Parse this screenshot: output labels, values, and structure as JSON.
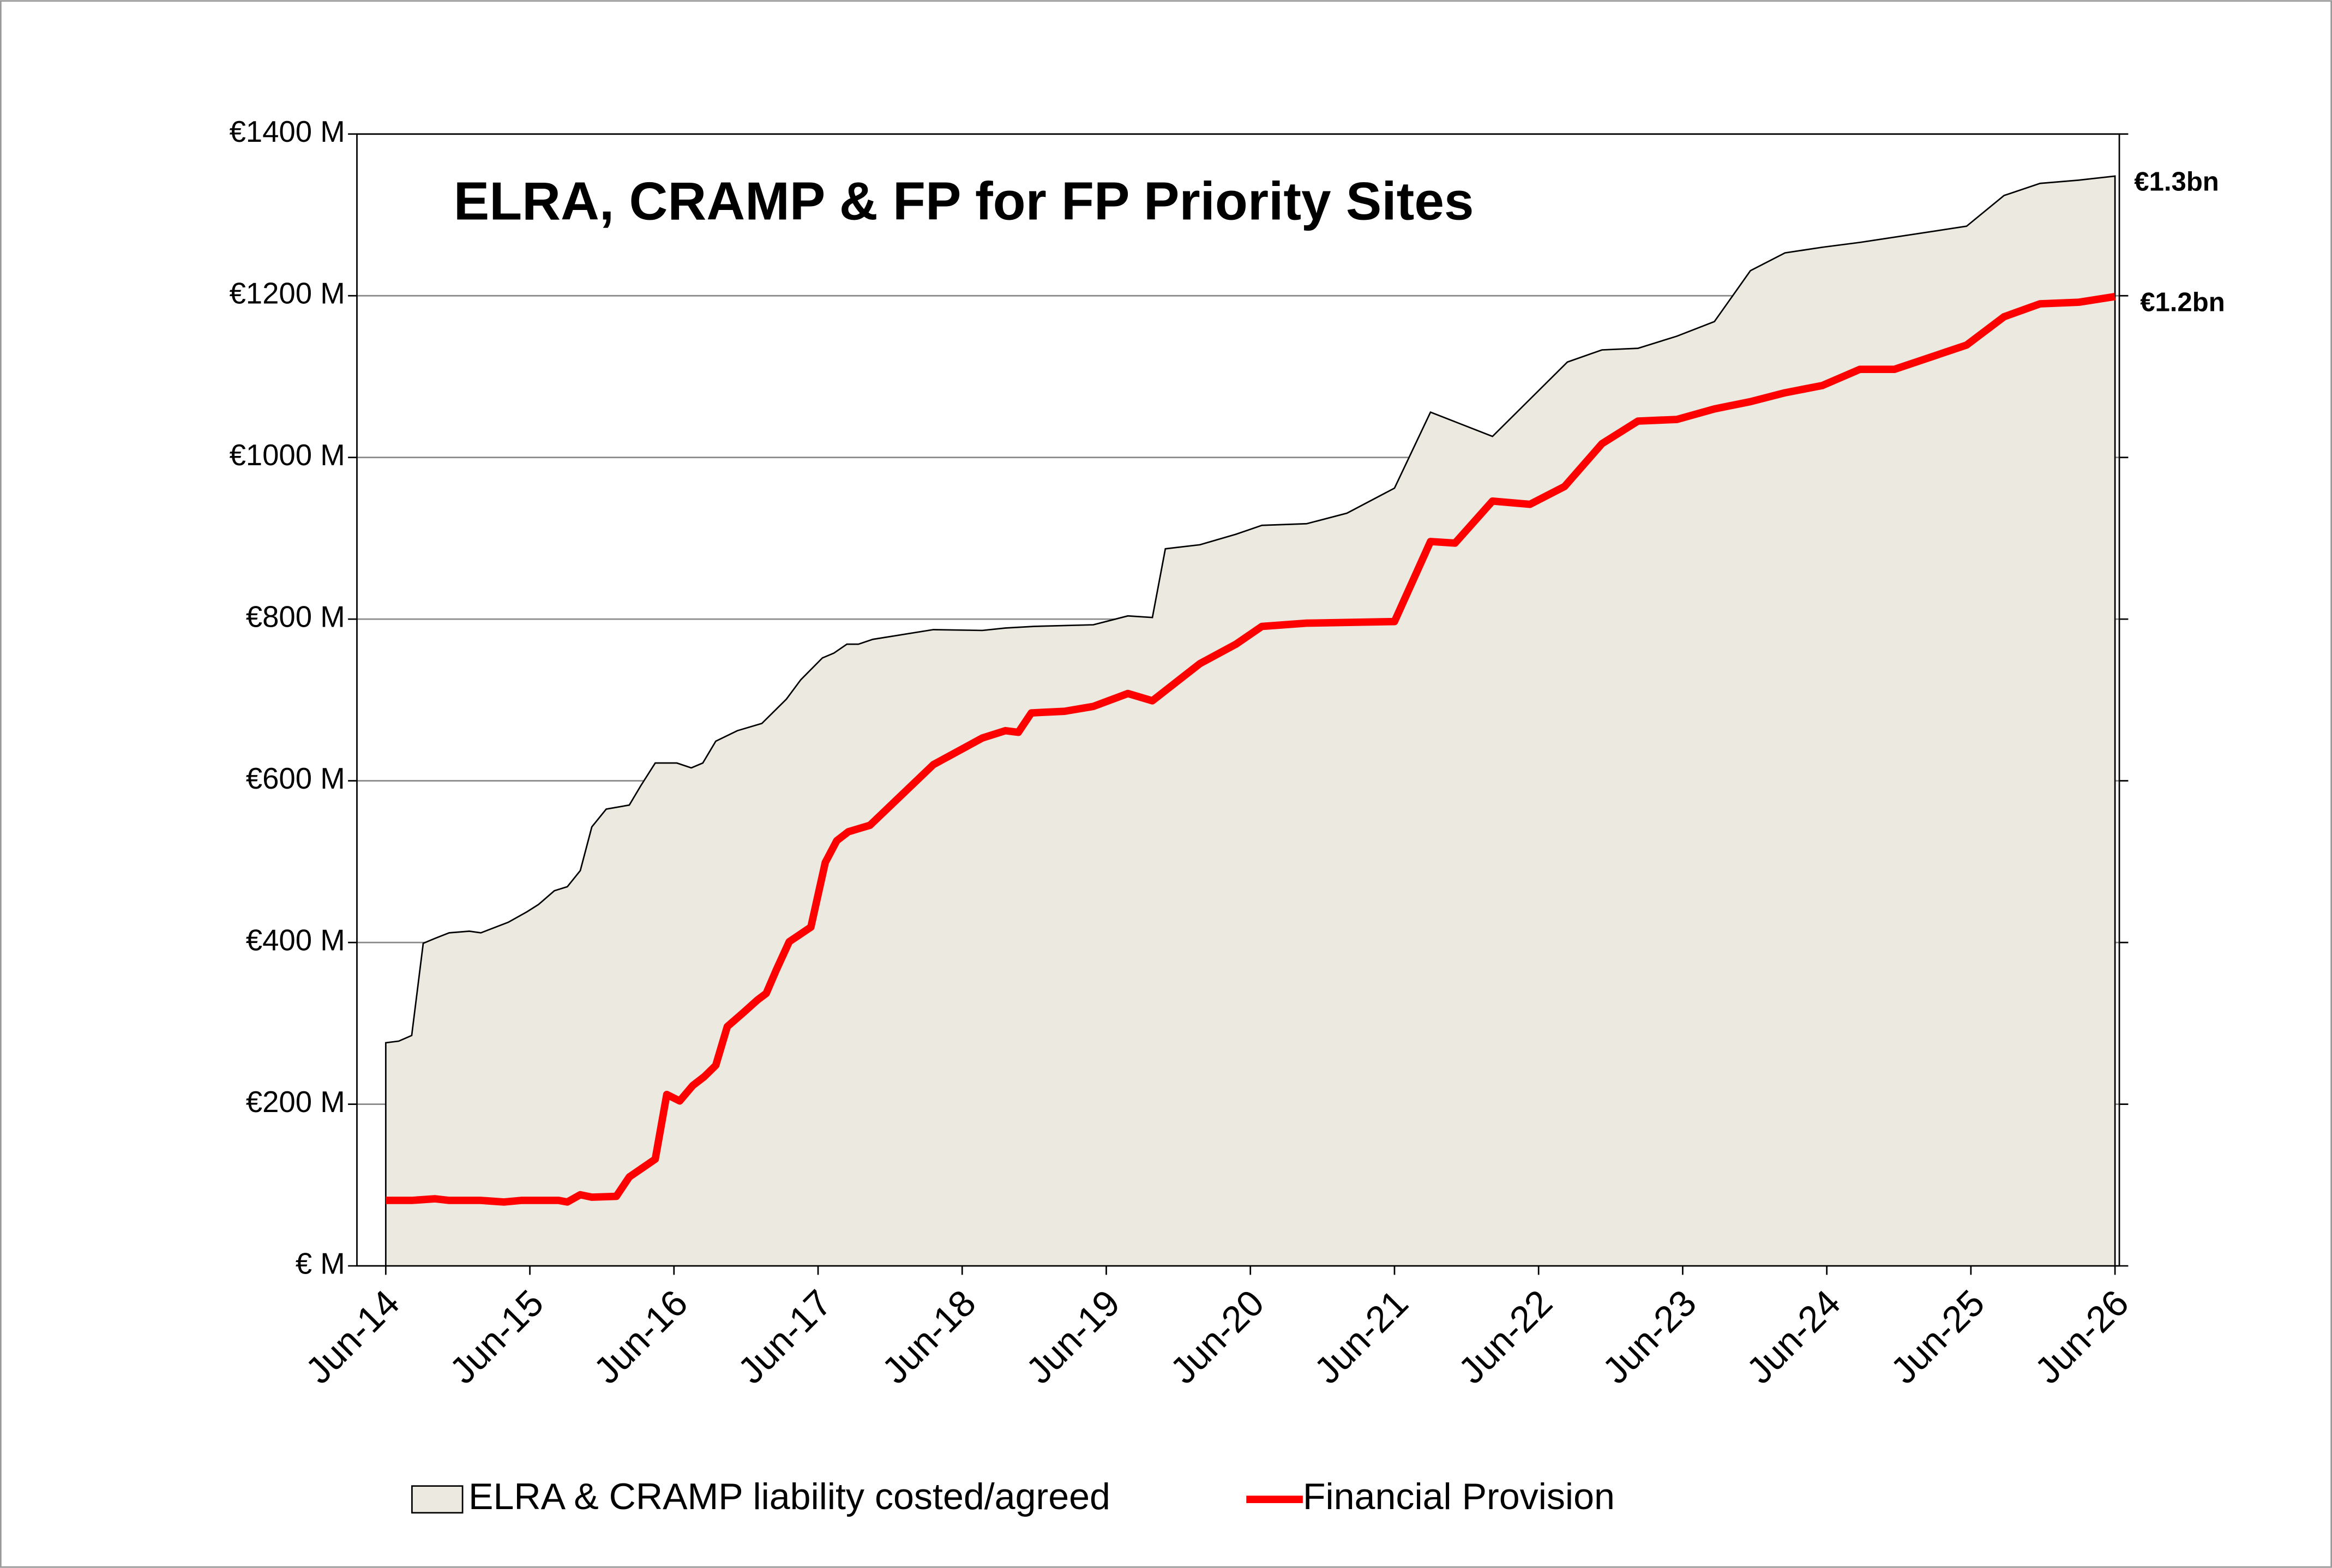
{
  "chart_data": {
    "type": "area-line",
    "title": "ELRA, CRAMP & FP for FP Priority Sites",
    "xlim": [
      2014.3,
      2026.53
    ],
    "xticks": [
      {
        "value": 2014.5,
        "label": "Jun-14"
      },
      {
        "value": 2015.5,
        "label": "Jun-15"
      },
      {
        "value": 2016.5,
        "label": "Jun-16"
      },
      {
        "value": 2017.5,
        "label": "Jun-17"
      },
      {
        "value": 2018.5,
        "label": "Jun-18"
      },
      {
        "value": 2019.5,
        "label": "Jun-19"
      },
      {
        "value": 2020.5,
        "label": "Jun-20"
      },
      {
        "value": 2021.5,
        "label": "Jun-21"
      },
      {
        "value": 2022.5,
        "label": "Jun-22"
      },
      {
        "value": 2023.5,
        "label": "Jun-23"
      },
      {
        "value": 2024.5,
        "label": "Jun-24"
      },
      {
        "value": 2025.5,
        "label": "Jun-25"
      },
      {
        "value": 2026.5,
        "label": "Jun-26"
      }
    ],
    "ylim": [
      0,
      1400
    ],
    "yticks": [
      {
        "value": 0,
        "label": "€ M"
      },
      {
        "value": 200,
        "label": "€200 M"
      },
      {
        "value": 400,
        "label": "€400 M"
      },
      {
        "value": 600,
        "label": "€600 M"
      },
      {
        "value": 800,
        "label": "€800 M"
      },
      {
        "value": 1000,
        "label": "€1000 M"
      },
      {
        "value": 1200,
        "label": "€1200 M"
      },
      {
        "value": 1400,
        "label": "€1400 M"
      }
    ],
    "grid": true,
    "series": [
      {
        "name": "ELRA & CRAMP liability costed/agreed",
        "kind": "area",
        "color": "#ece9e0",
        "end_label": "€1.3bn",
        "x": [
          2014.5,
          2014.59,
          2014.68,
          2014.76,
          2014.84,
          2014.94,
          2015.08,
          2015.16,
          2015.35,
          2015.48,
          2015.56,
          2015.67,
          2015.76,
          2015.85,
          2015.93,
          2016.03,
          2016.19,
          2016.27,
          2016.37,
          2016.52,
          2016.62,
          2016.7,
          2016.79,
          2016.94,
          2017.11,
          2017.28,
          2017.38,
          2017.53,
          2017.61,
          2017.7,
          2017.78,
          2017.88,
          2018.3,
          2018.64,
          2018.8,
          2019.0,
          2019.41,
          2019.65,
          2019.82,
          2019.91,
          2020.15,
          2020.4,
          2020.58,
          2020.89,
          2021.17,
          2021.5,
          2021.75,
          2022.18,
          2022.7,
          2022.94,
          2023.19,
          2023.46,
          2023.72,
          2023.97,
          2024.21,
          2024.47,
          2024.73,
          2025.47,
          2025.73,
          2025.98,
          2026.25,
          2026.5
        ],
        "values": [
          276,
          278,
          285,
          399,
          405,
          412,
          414,
          412,
          425,
          438,
          447,
          464,
          469,
          489,
          543,
          565,
          570,
          594,
          622,
          622,
          616,
          622,
          649,
          662,
          671,
          701,
          725,
          752,
          758,
          769,
          769,
          775,
          787,
          786,
          789,
          791,
          793,
          804,
          802,
          887,
          892,
          905,
          916,
          918,
          931,
          962,
          1056,
          1026,
          1118,
          1133,
          1135,
          1150,
          1168,
          1231,
          1253,
          1260,
          1266,
          1286,
          1324,
          1339,
          1343,
          1348
        ]
      },
      {
        "name": "Financial Provision",
        "kind": "line",
        "color": "#ff0000",
        "end_label": "€1.2bn",
        "x": [
          2014.5,
          2014.68,
          2014.84,
          2014.94,
          2015.16,
          2015.32,
          2015.44,
          2015.7,
          2015.76,
          2015.85,
          2015.93,
          2016.1,
          2016.19,
          2016.37,
          2016.45,
          2016.54,
          2016.63,
          2016.71,
          2016.79,
          2016.87,
          2016.98,
          2017.08,
          2017.14,
          2017.21,
          2017.3,
          2017.45,
          2017.55,
          2017.63,
          2017.71,
          2017.86,
          2018.3,
          2018.64,
          2018.8,
          2018.89,
          2018.98,
          2019.21,
          2019.41,
          2019.65,
          2019.82,
          2020.15,
          2020.4,
          2020.58,
          2020.89,
          2021.5,
          2021.75,
          2021.92,
          2022.18,
          2022.44,
          2022.68,
          2022.94,
          2023.19,
          2023.46,
          2023.72,
          2023.97,
          2024.21,
          2024.47,
          2024.73,
          2024.97,
          2025.47,
          2025.73,
          2025.98,
          2026.25,
          2026.5
        ],
        "values": [
          81,
          81,
          83,
          81,
          81,
          79,
          81,
          81,
          79,
          88,
          85,
          86,
          110,
          132,
          212,
          204,
          223,
          234,
          248,
          296,
          313,
          329,
          337,
          366,
          401,
          419,
          499,
          526,
          537,
          545,
          620,
          653,
          662,
          660,
          684,
          686,
          692,
          708,
          699,
          745,
          769,
          791,
          795,
          797,
          896,
          894,
          946,
          942,
          964,
          1017,
          1045,
          1047,
          1060,
          1069,
          1080,
          1089,
          1109,
          1109,
          1139,
          1174,
          1190,
          1192,
          1199
        ]
      }
    ]
  }
}
